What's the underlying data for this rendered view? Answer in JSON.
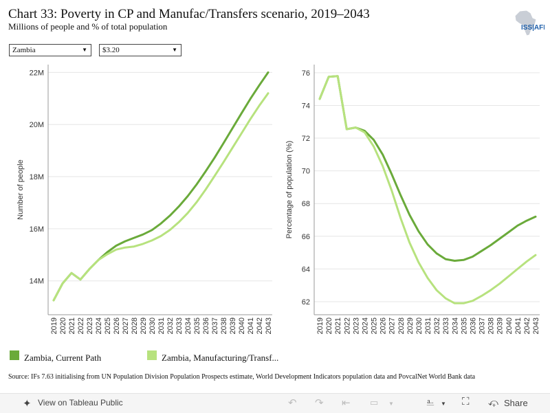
{
  "header": {
    "title": "Chart 33: Poverty in CP and Manufac/Transfers scenario, 2019–2043",
    "subtitle": "Millions of people and % of total population",
    "logo_text": "ISS|AFI"
  },
  "filters": {
    "country": "Zambia",
    "poverty_line": "$3.20"
  },
  "colors": {
    "current_path": "#6aaa3a",
    "manufacturing": "#b7e27e",
    "axis": "#999999",
    "grid": "#e6e6e6"
  },
  "legend": {
    "current_path": "Zambia, Current Path",
    "manufacturing": "Zambia, Manufacturing/Transf..."
  },
  "source": "Source: IFs 7.63 initialising from UN Population Division Population Prospects estimate, World Development Indicators population data and PovcalNet World Bank data",
  "toolbar": {
    "view_label": "View on Tableau Public",
    "share_label": "Share"
  },
  "chart_data": [
    {
      "type": "line",
      "ylabel": "Number of people",
      "xlabel": "",
      "ylim": [
        12.7,
        22.3
      ],
      "yticks": [
        14,
        16,
        18,
        20,
        22
      ],
      "ytick_labels": [
        "14M",
        "16M",
        "18M",
        "20M",
        "22M"
      ],
      "x": [
        "2019",
        "2020",
        "2021",
        "2022",
        "2023",
        "2024",
        "2025",
        "2026",
        "2027",
        "2028",
        "2029",
        "2030",
        "2031",
        "2032",
        "2033",
        "2034",
        "2035",
        "2036",
        "2037",
        "2038",
        "2039",
        "2040",
        "2041",
        "2042",
        "2043"
      ],
      "series": [
        {
          "name": "Zambia, Current Path",
          "values": [
            13.25,
            13.9,
            14.3,
            14.05,
            14.45,
            14.8,
            15.1,
            15.35,
            15.52,
            15.65,
            15.78,
            15.95,
            16.2,
            16.5,
            16.85,
            17.25,
            17.7,
            18.2,
            18.72,
            19.28,
            19.85,
            20.42,
            20.98,
            21.5,
            22.0
          ]
        },
        {
          "name": "Zambia, Manufacturing/Transf...",
          "values": [
            13.25,
            13.9,
            14.3,
            14.05,
            14.45,
            14.8,
            15.02,
            15.2,
            15.28,
            15.32,
            15.42,
            15.55,
            15.72,
            15.95,
            16.25,
            16.6,
            17.02,
            17.5,
            18.02,
            18.55,
            19.1,
            19.65,
            20.2,
            20.72,
            21.2
          ]
        }
      ]
    },
    {
      "type": "line",
      "ylabel": "Percentage of population (%)",
      "xlabel": "",
      "ylim": [
        61.2,
        76.5
      ],
      "yticks": [
        62,
        64,
        66,
        68,
        70,
        72,
        74,
        76
      ],
      "ytick_labels": [
        "62",
        "64",
        "66",
        "68",
        "70",
        "72",
        "74",
        "76"
      ],
      "x": [
        "2019",
        "2020",
        "2021",
        "2022",
        "2023",
        "2024",
        "2025",
        "2026",
        "2027",
        "2028",
        "2029",
        "2030",
        "2031",
        "2032",
        "2033",
        "2034",
        "2035",
        "2036",
        "2037",
        "2038",
        "2039",
        "2040",
        "2041",
        "2042",
        "2043"
      ],
      "series": [
        {
          "name": "Zambia, Current Path",
          "values": [
            74.4,
            75.75,
            75.8,
            72.55,
            72.65,
            72.45,
            71.9,
            71.0,
            69.8,
            68.5,
            67.3,
            66.3,
            65.5,
            64.95,
            64.6,
            64.5,
            64.55,
            64.75,
            65.1,
            65.45,
            65.85,
            66.25,
            66.65,
            66.95,
            67.2
          ]
        },
        {
          "name": "Zambia, Manufacturing/Transf...",
          "values": [
            74.4,
            75.75,
            75.8,
            72.55,
            72.65,
            72.35,
            71.5,
            70.3,
            68.8,
            67.1,
            65.6,
            64.4,
            63.45,
            62.7,
            62.2,
            61.9,
            61.9,
            62.05,
            62.35,
            62.7,
            63.1,
            63.55,
            64.0,
            64.45,
            64.85
          ]
        }
      ]
    }
  ]
}
